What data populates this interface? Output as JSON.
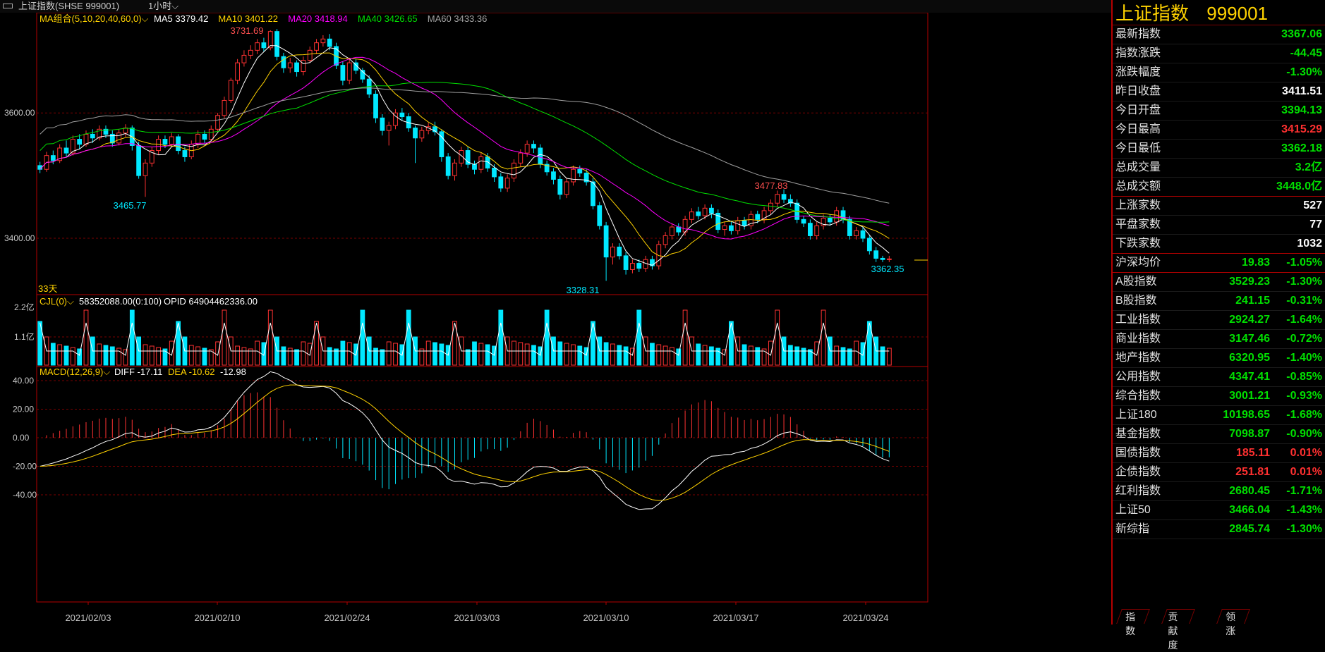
{
  "window": {
    "title": "上证指数(SHSE 999001)",
    "period": "1小时"
  },
  "chart_data": {
    "type": "candlestick",
    "dates": [
      "2021/02/03",
      "2021/02/10",
      "2021/02/24",
      "2021/03/03",
      "2021/03/10",
      "2021/03/17",
      "2021/03/24"
    ],
    "ma": {
      "title": "MA组合(5,10,20,40,60,0)",
      "items": [
        {
          "label": "MA5",
          "value": "3379.42",
          "color": "#ffffff"
        },
        {
          "label": "MA10",
          "value": "3401.22",
          "color": "#ffd200"
        },
        {
          "label": "MA20",
          "value": "3418.94",
          "color": "#ff00ff"
        },
        {
          "label": "MA40",
          "value": "3426.65",
          "color": "#00e000"
        },
        {
          "label": "MA60",
          "value": "3433.36",
          "color": "#a0a0a0"
        }
      ]
    },
    "y_ticks": [
      "3600.00",
      "3400.00"
    ],
    "annotations": {
      "high": "3731.69",
      "low1": "3465.77",
      "low2": "3328.31",
      "high2": "3477.83",
      "last": "3362.35",
      "days": "33天"
    },
    "vol": {
      "title": "CJL(0)",
      "v1": "58352088.00(0:100)",
      "opid": "OPID 64904462336.00",
      "y_ticks": [
        "2.2亿",
        "1.1亿"
      ]
    },
    "macd": {
      "title": "MACD(12,26,9)",
      "diff": "DIFF -17.11",
      "dea": "DEA -10.62",
      "macd": "-12.98",
      "y_ticks": [
        "40.00",
        "20.00",
        "0.00",
        "-20.00",
        "-40.00"
      ]
    },
    "ohlc": [
      [
        3516,
        3510,
        3522,
        3504
      ],
      [
        3510,
        3532,
        3538,
        3506
      ],
      [
        3532,
        3524,
        3540,
        3518
      ],
      [
        3524,
        3544,
        3550,
        3520
      ],
      [
        3544,
        3536,
        3556,
        3530
      ],
      [
        3536,
        3558,
        3564,
        3532
      ],
      [
        3558,
        3550,
        3566,
        3542
      ],
      [
        3550,
        3566,
        3572,
        3546
      ],
      [
        3566,
        3560,
        3574,
        3552
      ],
      [
        3560,
        3574,
        3580,
        3556
      ],
      [
        3574,
        3566,
        3580,
        3560
      ],
      [
        3566,
        3552,
        3572,
        3546
      ],
      [
        3552,
        3568,
        3574,
        3548
      ],
      [
        3568,
        3576,
        3582,
        3562
      ],
      [
        3576,
        3548,
        3580,
        3540
      ],
      [
        3548,
        3500,
        3554,
        3495
      ],
      [
        3500,
        3520,
        3526,
        3466
      ],
      [
        3520,
        3540,
        3546,
        3514
      ],
      [
        3540,
        3558,
        3564,
        3534
      ],
      [
        3558,
        3550,
        3564,
        3544
      ],
      [
        3550,
        3562,
        3568,
        3546
      ],
      [
        3562,
        3540,
        3566,
        3534
      ],
      [
        3540,
        3530,
        3546,
        3522
      ],
      [
        3530,
        3550,
        3556,
        3526
      ],
      [
        3550,
        3566,
        3572,
        3544
      ],
      [
        3566,
        3558,
        3572,
        3552
      ],
      [
        3558,
        3574,
        3580,
        3554
      ],
      [
        3574,
        3596,
        3600,
        3570
      ],
      [
        3596,
        3620,
        3626,
        3592
      ],
      [
        3620,
        3652,
        3656,
        3616
      ],
      [
        3652,
        3680,
        3686,
        3646
      ],
      [
        3680,
        3692,
        3700,
        3674
      ],
      [
        3692,
        3700,
        3708,
        3686
      ],
      [
        3700,
        3712,
        3718,
        3694
      ],
      [
        3712,
        3704,
        3720,
        3698
      ],
      [
        3704,
        3730,
        3732,
        3700
      ],
      [
        3730,
        3690,
        3734,
        3684
      ],
      [
        3690,
        3672,
        3696,
        3664
      ],
      [
        3672,
        3680,
        3688,
        3664
      ],
      [
        3680,
        3666,
        3684,
        3658
      ],
      [
        3666,
        3684,
        3690,
        3660
      ],
      [
        3684,
        3700,
        3706,
        3680
      ],
      [
        3700,
        3712,
        3718,
        3694
      ],
      [
        3712,
        3718,
        3724,
        3706
      ],
      [
        3718,
        3706,
        3726,
        3700
      ],
      [
        3706,
        3676,
        3712,
        3670
      ],
      [
        3676,
        3652,
        3682,
        3644
      ],
      [
        3652,
        3680,
        3686,
        3646
      ],
      [
        3680,
        3668,
        3686,
        3662
      ],
      [
        3668,
        3654,
        3672,
        3648
      ],
      [
        3654,
        3630,
        3660,
        3624
      ],
      [
        3630,
        3592,
        3636,
        3584
      ],
      [
        3592,
        3572,
        3598,
        3564
      ],
      [
        3572,
        3580,
        3586,
        3548
      ],
      [
        3580,
        3600,
        3606,
        3574
      ],
      [
        3600,
        3594,
        3608,
        3588
      ],
      [
        3594,
        3576,
        3600,
        3570
      ],
      [
        3576,
        3560,
        3580,
        3520
      ],
      [
        3560,
        3572,
        3578,
        3554
      ],
      [
        3572,
        3578,
        3584,
        3566
      ],
      [
        3578,
        3570,
        3586,
        3564
      ],
      [
        3570,
        3530,
        3574,
        3522
      ],
      [
        3530,
        3500,
        3536,
        3494
      ],
      [
        3500,
        3520,
        3526,
        3492
      ],
      [
        3520,
        3540,
        3546,
        3514
      ],
      [
        3540,
        3518,
        3546,
        3512
      ],
      [
        3518,
        3510,
        3524,
        3502
      ],
      [
        3510,
        3530,
        3536,
        3504
      ],
      [
        3530,
        3512,
        3536,
        3506
      ],
      [
        3512,
        3498,
        3518,
        3490
      ],
      [
        3498,
        3480,
        3504,
        3474
      ],
      [
        3480,
        3496,
        3502,
        3474
      ],
      [
        3496,
        3520,
        3526,
        3490
      ],
      [
        3520,
        3536,
        3542,
        3514
      ],
      [
        3536,
        3550,
        3556,
        3530
      ],
      [
        3550,
        3544,
        3556,
        3536
      ],
      [
        3544,
        3518,
        3550,
        3512
      ],
      [
        3518,
        3506,
        3524,
        3500
      ],
      [
        3506,
        3494,
        3512,
        3486
      ],
      [
        3494,
        3470,
        3500,
        3462
      ],
      [
        3470,
        3490,
        3496,
        3464
      ],
      [
        3490,
        3510,
        3516,
        3484
      ],
      [
        3510,
        3504,
        3516,
        3498
      ],
      [
        3504,
        3490,
        3510,
        3484
      ],
      [
        3490,
        3452,
        3496,
        3446
      ],
      [
        3452,
        3420,
        3458,
        3414
      ],
      [
        3420,
        3370,
        3426,
        3332
      ],
      [
        3370,
        3386,
        3392,
        3358
      ],
      [
        3386,
        3372,
        3392,
        3366
      ],
      [
        3372,
        3350,
        3378,
        3342
      ],
      [
        3350,
        3360,
        3366,
        3344
      ],
      [
        3360,
        3352,
        3366,
        3346
      ],
      [
        3352,
        3366,
        3372,
        3346
      ],
      [
        3366,
        3356,
        3372,
        3350
      ],
      [
        3356,
        3390,
        3396,
        3350
      ],
      [
        3390,
        3404,
        3410,
        3384
      ],
      [
        3404,
        3418,
        3424,
        3398
      ],
      [
        3418,
        3410,
        3424,
        3404
      ],
      [
        3410,
        3430,
        3436,
        3404
      ],
      [
        3430,
        3442,
        3448,
        3424
      ],
      [
        3442,
        3436,
        3450,
        3430
      ],
      [
        3436,
        3448,
        3454,
        3430
      ],
      [
        3448,
        3440,
        3454,
        3432
      ],
      [
        3440,
        3414,
        3446,
        3408
      ],
      [
        3414,
        3420,
        3426,
        3404
      ],
      [
        3420,
        3412,
        3428,
        3406
      ],
      [
        3412,
        3428,
        3434,
        3406
      ],
      [
        3428,
        3420,
        3434,
        3414
      ],
      [
        3420,
        3438,
        3444,
        3414
      ],
      [
        3438,
        3430,
        3444,
        3424
      ],
      [
        3430,
        3444,
        3450,
        3424
      ],
      [
        3444,
        3456,
        3462,
        3438
      ],
      [
        3456,
        3470,
        3476,
        3450
      ],
      [
        3470,
        3462,
        3478,
        3456
      ],
      [
        3462,
        3456,
        3470,
        3450
      ],
      [
        3456,
        3430,
        3462,
        3424
      ],
      [
        3430,
        3424,
        3436,
        3418
      ],
      [
        3424,
        3404,
        3430,
        3398
      ],
      [
        3404,
        3420,
        3426,
        3398
      ],
      [
        3420,
        3432,
        3438,
        3414
      ],
      [
        3432,
        3426,
        3438,
        3420
      ],
      [
        3426,
        3444,
        3450,
        3420
      ],
      [
        3444,
        3430,
        3450,
        3424
      ],
      [
        3430,
        3404,
        3436,
        3398
      ],
      [
        3404,
        3412,
        3418,
        3398
      ],
      [
        3412,
        3400,
        3418,
        3394
      ],
      [
        3400,
        3380,
        3406,
        3374
      ],
      [
        3380,
        3368,
        3386,
        3362
      ],
      [
        3368,
        3366,
        3372,
        3362
      ],
      [
        3366,
        3367,
        3372,
        3362
      ]
    ]
  },
  "side": {
    "title": "上证指数",
    "code": "999001",
    "rows": [
      {
        "label": "最新指数",
        "value": "3367.06",
        "color": "#00e000"
      },
      {
        "label": "指数涨跌",
        "value": "-44.45",
        "color": "#00e000"
      },
      {
        "label": "涨跌幅度",
        "value": "-1.30%",
        "color": "#00e000"
      },
      {
        "label": "昨日收盘",
        "value": "3411.51",
        "color": "#ffffff"
      },
      {
        "label": "今日开盘",
        "value": "3394.13",
        "color": "#00e000"
      },
      {
        "label": "今日最高",
        "value": "3415.29",
        "color": "#ff3030"
      },
      {
        "label": "今日最低",
        "value": "3362.18",
        "color": "#00e000"
      },
      {
        "label": "总成交量",
        "value": "3.2亿",
        "color": "#00e000"
      },
      {
        "label": "总成交额",
        "value": "3448.0亿",
        "color": "#00e000"
      }
    ],
    "rows2": [
      {
        "label": "上涨家数",
        "value": "527",
        "color": "#ffffff"
      },
      {
        "label": "平盘家数",
        "value": "77",
        "color": "#ffffff"
      },
      {
        "label": "下跌家数",
        "value": "1032",
        "color": "#ffffff"
      }
    ],
    "avg": {
      "label": "沪深均价",
      "v2": "19.83",
      "v1": "-1.05%",
      "color": "#00e000"
    },
    "indices": [
      {
        "label": "A股指数",
        "v2": "3529.23",
        "v1": "-1.30%",
        "color": "#00e000"
      },
      {
        "label": "B股指数",
        "v2": "241.15",
        "v1": "-0.31%",
        "color": "#00e000"
      },
      {
        "label": "工业指数",
        "v2": "2924.27",
        "v1": "-1.64%",
        "color": "#00e000"
      },
      {
        "label": "商业指数",
        "v2": "3147.46",
        "v1": "-0.72%",
        "color": "#00e000"
      },
      {
        "label": "地产指数",
        "v2": "6320.95",
        "v1": "-1.40%",
        "color": "#00e000"
      },
      {
        "label": "公用指数",
        "v2": "4347.41",
        "v1": "-0.85%",
        "color": "#00e000"
      },
      {
        "label": "综合指数",
        "v2": "3001.21",
        "v1": "-0.93%",
        "color": "#00e000"
      },
      {
        "label": "上证180",
        "v2": "10198.65",
        "v1": "-1.68%",
        "color": "#00e000"
      },
      {
        "label": "基金指数",
        "v2": "7098.87",
        "v1": "-0.90%",
        "color": "#00e000"
      },
      {
        "label": "国债指数",
        "v2": "185.11",
        "v1": "0.01%",
        "color": "#ff3030"
      },
      {
        "label": "企债指数",
        "v2": "251.81",
        "v1": "0.01%",
        "color": "#ff3030"
      },
      {
        "label": "红利指数",
        "v2": "2680.45",
        "v1": "-1.71%",
        "color": "#00e000"
      },
      {
        "label": "上证50",
        "v2": "3466.04",
        "v1": "-1.43%",
        "color": "#00e000"
      },
      {
        "label": "新综指",
        "v2": "2845.74",
        "v1": "-1.30%",
        "color": "#00e000"
      }
    ]
  },
  "tabs": [
    "指数",
    "贡献度",
    "领涨"
  ]
}
